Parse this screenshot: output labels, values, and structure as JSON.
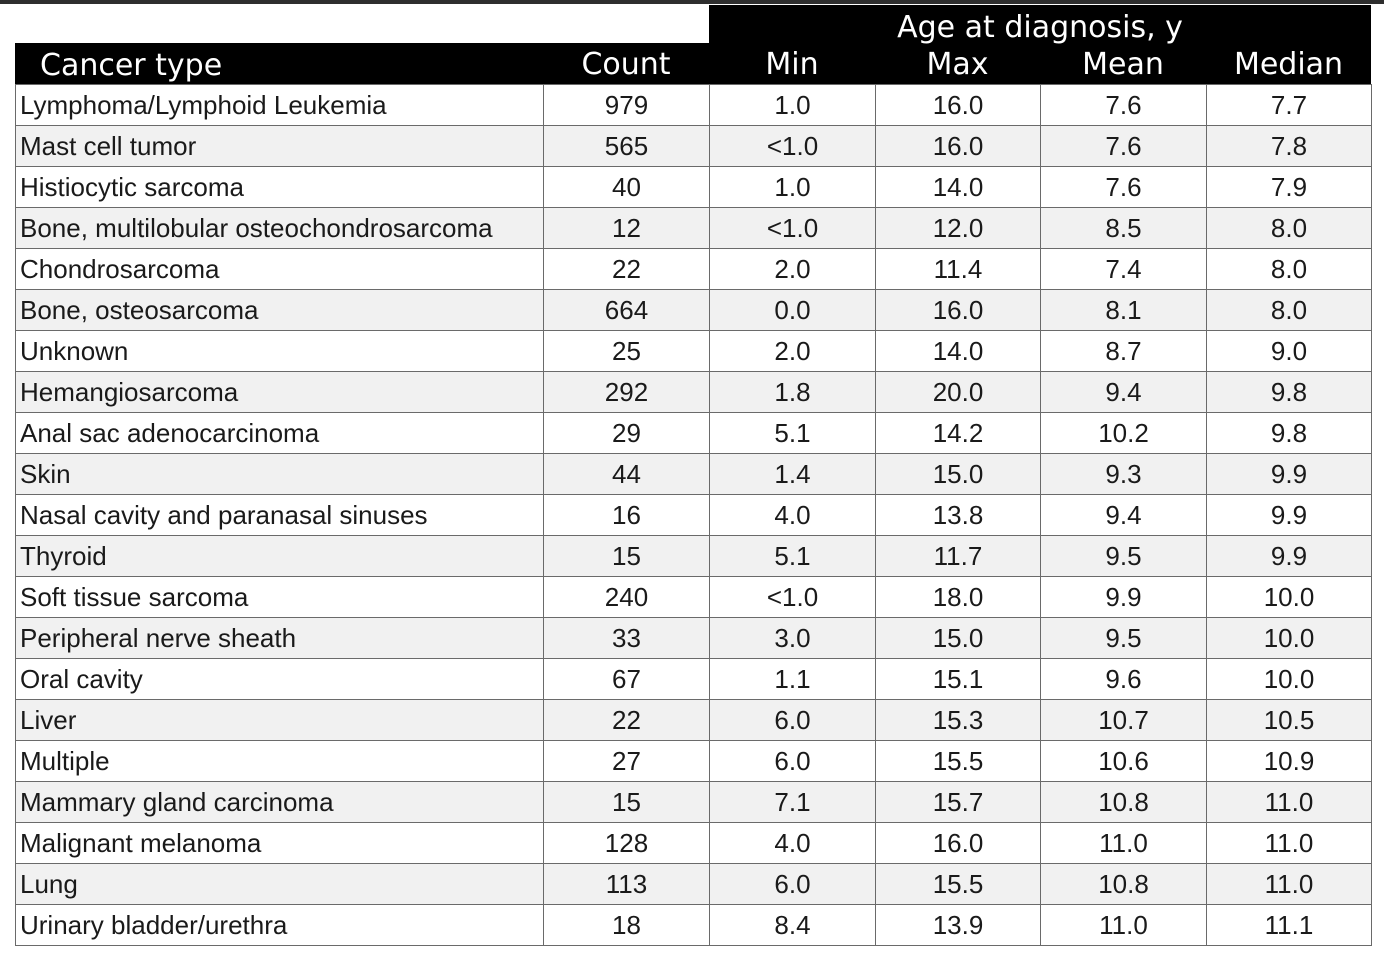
{
  "table": {
    "group_header": "Age at diagnosis, y",
    "columns": [
      "Cancer type",
      "Count",
      "Min",
      "Max",
      "Mean",
      "Median"
    ],
    "rows": [
      {
        "name": "Lymphoma/Lymphoid Leukemia",
        "count": "979",
        "min": "1.0",
        "max": "16.0",
        "mean": "7.6",
        "median": "7.7"
      },
      {
        "name": "Mast cell tumor",
        "count": "565",
        "min": "<1.0",
        "max": "16.0",
        "mean": "7.6",
        "median": "7.8"
      },
      {
        "name": "Histiocytic sarcoma",
        "count": "40",
        "min": "1.0",
        "max": "14.0",
        "mean": "7.6",
        "median": "7.9"
      },
      {
        "name": "Bone, multilobular osteochondrosarcoma",
        "count": "12",
        "min": "<1.0",
        "max": "12.0",
        "mean": "8.5",
        "median": "8.0"
      },
      {
        "name": "Chondrosarcoma",
        "count": "22",
        "min": "2.0",
        "max": "11.4",
        "mean": "7.4",
        "median": "8.0"
      },
      {
        "name": "Bone, osteosarcoma",
        "count": "664",
        "min": "0.0",
        "max": "16.0",
        "mean": "8.1",
        "median": "8.0"
      },
      {
        "name": "Unknown",
        "count": "25",
        "min": "2.0",
        "max": "14.0",
        "mean": "8.7",
        "median": "9.0"
      },
      {
        "name": "Hemangiosarcoma",
        "count": "292",
        "min": "1.8",
        "max": "20.0",
        "mean": "9.4",
        "median": "9.8"
      },
      {
        "name": "Anal sac adenocarcinoma",
        "count": "29",
        "min": "5.1",
        "max": "14.2",
        "mean": "10.2",
        "median": "9.8"
      },
      {
        "name": "Skin",
        "count": "44",
        "min": "1.4",
        "max": "15.0",
        "mean": "9.3",
        "median": "9.9"
      },
      {
        "name": "Nasal cavity and paranasal sinuses",
        "count": "16",
        "min": "4.0",
        "max": "13.8",
        "mean": "9.4",
        "median": "9.9"
      },
      {
        "name": "Thyroid",
        "count": "15",
        "min": "5.1",
        "max": "11.7",
        "mean": "9.5",
        "median": "9.9"
      },
      {
        "name": "Soft tissue sarcoma",
        "count": "240",
        "min": "<1.0",
        "max": "18.0",
        "mean": "9.9",
        "median": "10.0"
      },
      {
        "name": "Peripheral nerve sheath",
        "count": "33",
        "min": "3.0",
        "max": "15.0",
        "mean": "9.5",
        "median": "10.0"
      },
      {
        "name": "Oral cavity",
        "count": "67",
        "min": "1.1",
        "max": "15.1",
        "mean": "9.6",
        "median": "10.0"
      },
      {
        "name": "Liver",
        "count": "22",
        "min": "6.0",
        "max": "15.3",
        "mean": "10.7",
        "median": "10.5"
      },
      {
        "name": "Multiple",
        "count": "27",
        "min": "6.0",
        "max": "15.5",
        "mean": "10.6",
        "median": "10.9"
      },
      {
        "name": "Mammary gland carcinoma",
        "count": "15",
        "min": "7.1",
        "max": "15.7",
        "mean": "10.8",
        "median": "11.0"
      },
      {
        "name": "Malignant melanoma",
        "count": "128",
        "min": "4.0",
        "max": "16.0",
        "mean": "11.0",
        "median": "11.0"
      },
      {
        "name": "Lung",
        "count": "113",
        "min": "6.0",
        "max": "15.5",
        "mean": "10.8",
        "median": "11.0"
      },
      {
        "name": "Urinary bladder/urethra",
        "count": "18",
        "min": "8.4",
        "max": "13.9",
        "mean": "11.0",
        "median": "11.1"
      }
    ]
  }
}
